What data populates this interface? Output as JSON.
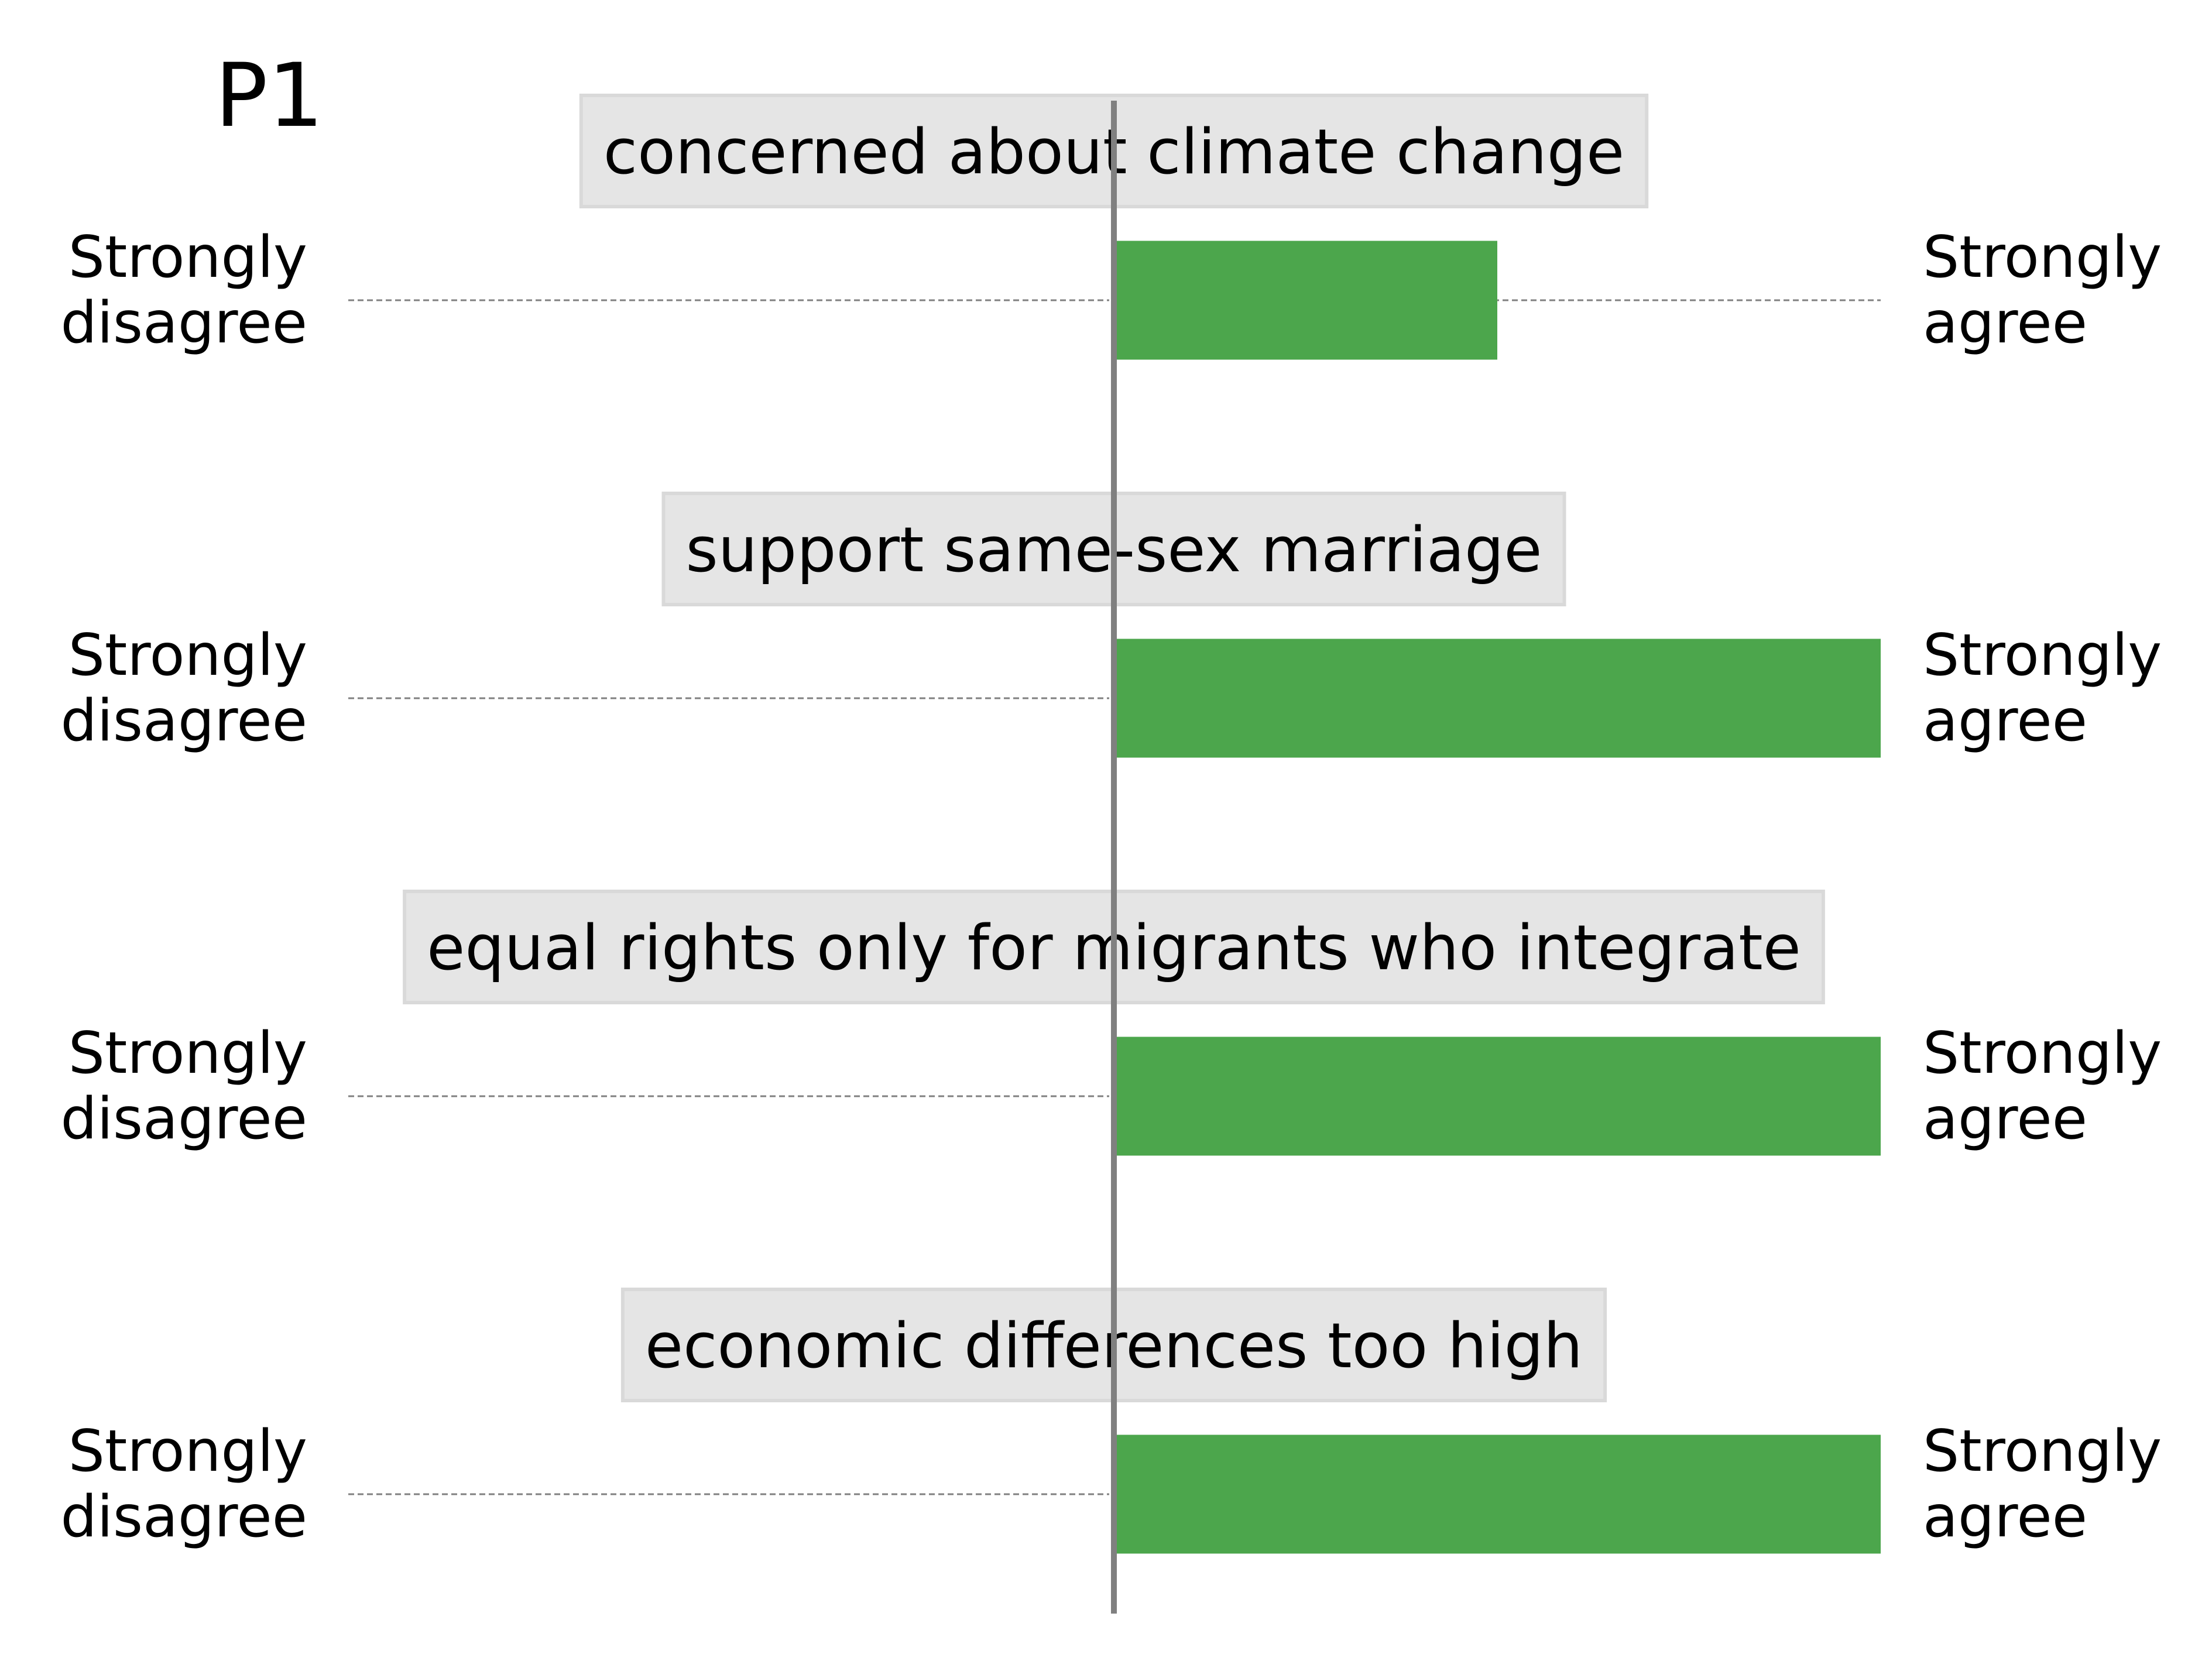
{
  "chart_data": {
    "type": "bar",
    "title": "P1",
    "xlim": [
      -1,
      1
    ],
    "scale_labels": {
      "left": [
        "Strongly",
        "disagree"
      ],
      "right": [
        "Strongly",
        "agree"
      ]
    },
    "categories": [
      "concerned about climate change",
      "support same-sex marriage",
      "equal rights only for migrants who integrate",
      "economic differences too high"
    ],
    "values": [
      0.5,
      1.0,
      1.0,
      1.0
    ],
    "grid": false,
    "legend": "none"
  },
  "colors": {
    "bar": "#4ca64c",
    "axis_line": "#808080",
    "guide_line": "#808080",
    "label_box": "#e5e5e5",
    "label_box_border": "#d9d9d9",
    "text": "#000000"
  }
}
